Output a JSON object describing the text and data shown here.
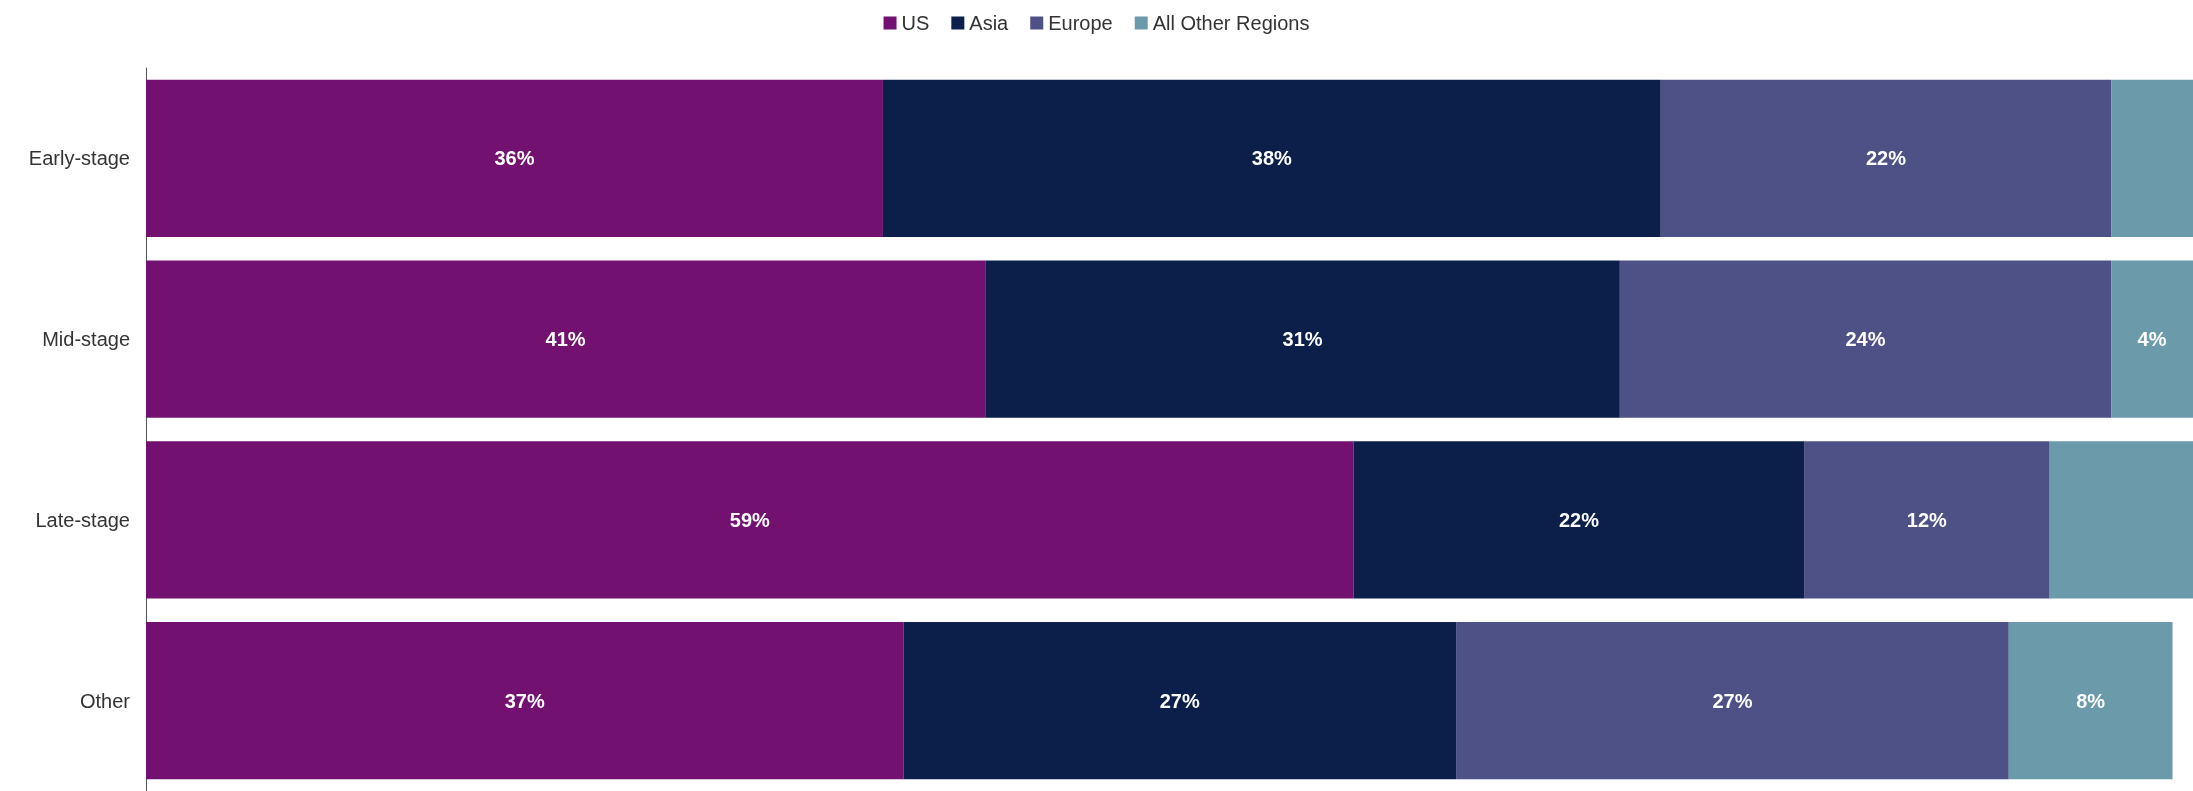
{
  "chart_data": {
    "type": "bar",
    "orientation": "horizontal",
    "stacked": true,
    "legend": "top",
    "categories": [
      "Early-stage",
      "Mid-stage",
      "Late-stage",
      "Other"
    ],
    "series": [
      {
        "name": "US",
        "color": "#721170",
        "values": [
          36,
          41,
          59,
          37
        ],
        "value_labels": [
          "36%",
          "41%",
          "59%",
          "37%"
        ]
      },
      {
        "name": "Asia",
        "color": "#0c1f4a",
        "values": [
          38,
          31,
          22,
          27
        ],
        "value_labels": [
          "38%",
          "31%",
          "22%",
          "27%"
        ]
      },
      {
        "name": "Europe",
        "color": "#4e5186",
        "values": [
          22,
          24,
          12,
          27
        ],
        "value_labels": [
          "22%",
          "24%",
          "12%",
          "27%"
        ]
      },
      {
        "name": "All Other Regions",
        "color": "#6b9aab",
        "values": [
          4,
          4,
          7,
          8
        ],
        "value_labels": [
          null,
          "4%",
          null,
          "8%"
        ]
      }
    ]
  }
}
